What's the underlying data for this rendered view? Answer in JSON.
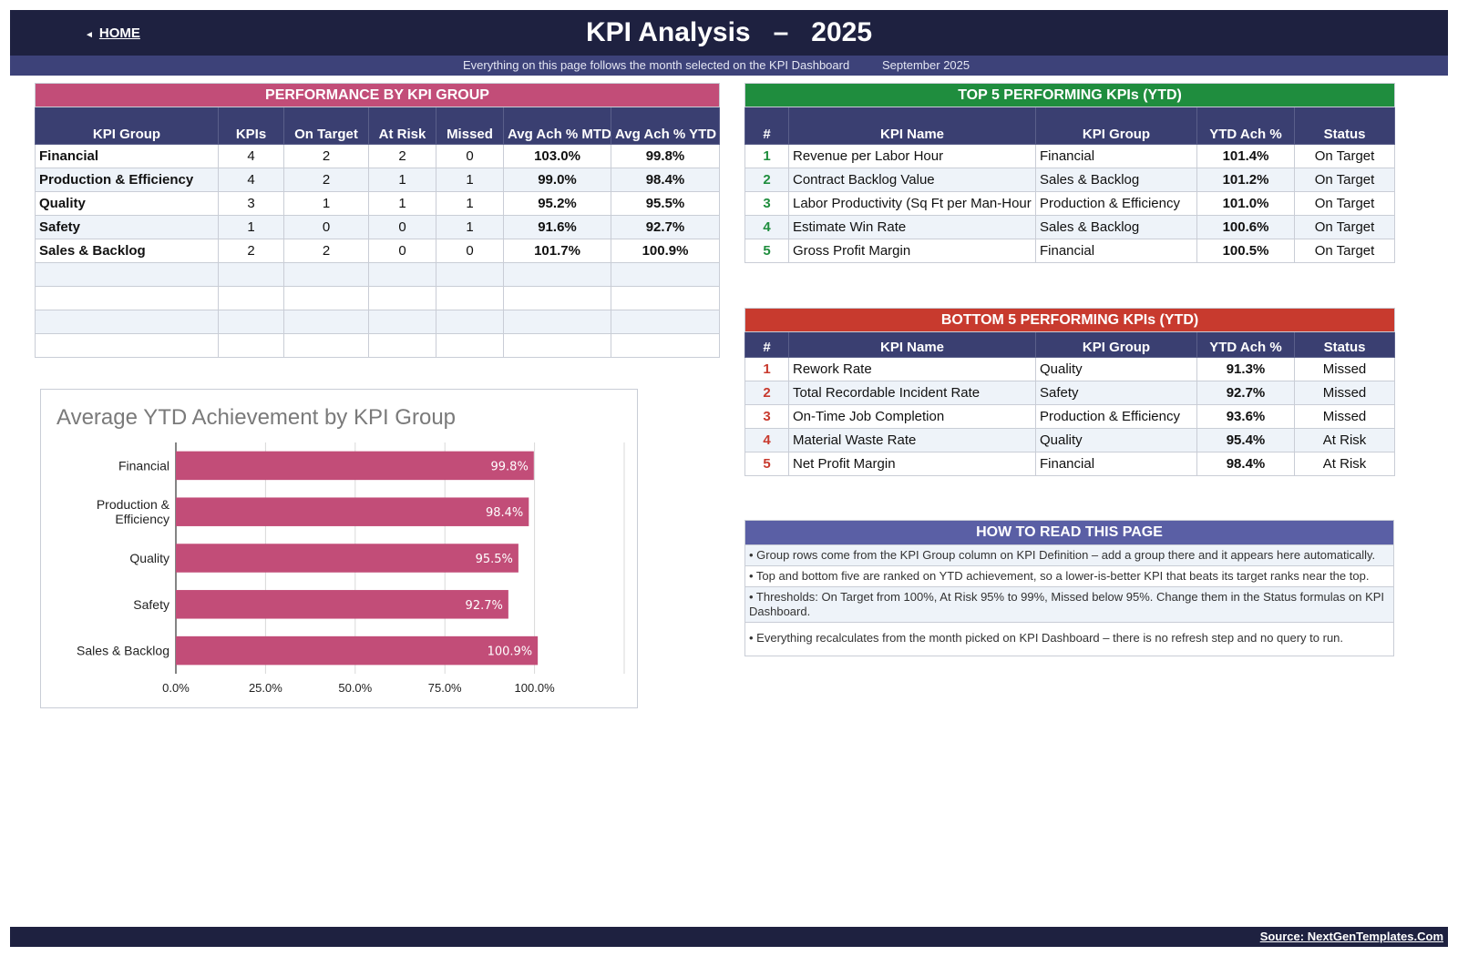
{
  "header": {
    "home_arrow": "◄",
    "home_label": "HOME",
    "title": "KPI Analysis   –   2025",
    "subtitle_note": "Everything on this page follows the month selected on the KPI Dashboard",
    "selected_month": "September 2025"
  },
  "performance": {
    "caption": "PERFORMANCE BY KPI GROUP",
    "columns": [
      "KPI Group",
      "KPIs",
      "On Target",
      "At Risk",
      "Missed",
      "Avg Ach % MTD",
      "Avg Ach % YTD"
    ],
    "rows": [
      [
        "Financial",
        "4",
        "2",
        "2",
        "0",
        "103.0%",
        "99.8%"
      ],
      [
        "Production & Efficiency",
        "4",
        "2",
        "1",
        "1",
        "99.0%",
        "98.4%"
      ],
      [
        "Quality",
        "3",
        "1",
        "1",
        "1",
        "95.2%",
        "95.5%"
      ],
      [
        "Safety",
        "1",
        "0",
        "0",
        "1",
        "91.6%",
        "92.7%"
      ],
      [
        "Sales & Backlog",
        "2",
        "2",
        "0",
        "0",
        "101.7%",
        "100.9%"
      ],
      [
        "",
        "",
        "",
        "",
        "",
        "",
        ""
      ],
      [
        "",
        "",
        "",
        "",
        "",
        "",
        ""
      ],
      [
        "",
        "",
        "",
        "",
        "",
        "",
        ""
      ],
      [
        "",
        "",
        "",
        "",
        "",
        "",
        ""
      ]
    ]
  },
  "top5": {
    "caption": "TOP 5 PERFORMING KPIs  (YTD)",
    "columns": [
      "#",
      "KPI Name",
      "KPI Group",
      "YTD Ach %",
      "Status"
    ],
    "rows": [
      [
        "1",
        "Revenue per Labor Hour",
        "Financial",
        "101.4%",
        "On Target"
      ],
      [
        "2",
        "Contract Backlog Value",
        "Sales & Backlog",
        "101.2%",
        "On Target"
      ],
      [
        "3",
        "Labor Productivity (Sq Ft per Man-Hour",
        "Production & Efficiency",
        "101.0%",
        "On Target"
      ],
      [
        "4",
        "Estimate Win Rate",
        "Sales & Backlog",
        "100.6%",
        "On Target"
      ],
      [
        "5",
        "Gross Profit Margin",
        "Financial",
        "100.5%",
        "On Target"
      ]
    ]
  },
  "bottom5": {
    "caption": "BOTTOM 5 PERFORMING KPIs  (YTD)",
    "columns": [
      "#",
      "KPI Name",
      "KPI Group",
      "YTD Ach %",
      "Status"
    ],
    "rows": [
      [
        "1",
        "Rework Rate",
        "Quality",
        "91.3%",
        "Missed"
      ],
      [
        "2",
        "Total Recordable Incident Rate",
        "Safety",
        "92.7%",
        "Missed"
      ],
      [
        "3",
        "On-Time Job Completion",
        "Production & Efficiency",
        "93.6%",
        "Missed"
      ],
      [
        "4",
        "Material Waste Rate",
        "Quality",
        "95.4%",
        "At Risk"
      ],
      [
        "5",
        "Net Profit Margin",
        "Financial",
        "98.4%",
        "At Risk"
      ]
    ]
  },
  "howto": {
    "caption": "HOW TO READ THIS PAGE",
    "items": [
      "•  Group rows come from the KPI Group column on KPI Definition – add a group there and it appears here automatically.",
      "•  Top and bottom five are ranked on YTD achievement, so a lower-is-better KPI that beats its target ranks near the top.",
      "•  Thresholds: On Target from 100%, At Risk 95% to 99%, Missed below 95%. Change them in the Status formulas on KPI Dashboard.",
      "•  Everything recalculates from the month picked on KPI Dashboard – there is no refresh step and no query to run."
    ]
  },
  "chart_title": "Average YTD Achievement by KPI Group",
  "chart_data": {
    "type": "bar",
    "orientation": "horizontal",
    "title": "Average YTD Achievement by KPI Group",
    "categories": [
      "Financial",
      "Production & Efficiency",
      "Quality",
      "Safety",
      "Sales & Backlog"
    ],
    "category_lines": [
      [
        "Financial"
      ],
      [
        "Production &",
        "Efficiency"
      ],
      [
        "Quality"
      ],
      [
        "Safety"
      ],
      [
        "Sales & Backlog"
      ]
    ],
    "values": [
      99.8,
      98.4,
      95.5,
      92.7,
      100.9
    ],
    "data_labels": [
      "99.8%",
      "98.4%",
      "95.5%",
      "92.7%",
      "100.9%"
    ],
    "xlim": [
      0,
      125
    ],
    "xticks": [
      0,
      25,
      50,
      75,
      100
    ],
    "xtick_labels": [
      "0.0%",
      "25.0%",
      "50.0%",
      "75.0%",
      "100.0%"
    ],
    "bar_color": "#c24d78",
    "grid": true,
    "legend": "none"
  },
  "footer": {
    "source": "Source: NextGenTemplates.Com"
  },
  "colors": {
    "navy": "#1e2140",
    "subbar": "#3d4279",
    "header_cell": "#3a3f71",
    "pink": "#c24d78",
    "green": "#1f8d3e",
    "red": "#c83a2e",
    "purple": "#5a5fa5"
  }
}
